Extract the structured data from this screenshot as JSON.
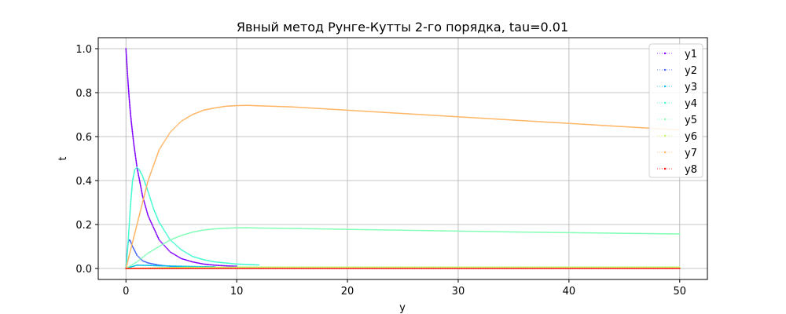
{
  "chart_data": {
    "type": "scatter",
    "title": "Явный метод Рунге-Кутты 2-го порядка, tau=0.01",
    "xlabel": "y",
    "ylabel": "t",
    "xlim": [
      -2.5,
      52.5
    ],
    "ylim": [
      -0.05,
      1.05
    ],
    "xticks": [
      0,
      10,
      20,
      30,
      40,
      50
    ],
    "yticks": [
      0.0,
      0.2,
      0.4,
      0.6,
      0.8,
      1.0
    ],
    "xtick_labels": [
      "0",
      "10",
      "20",
      "30",
      "40",
      "50"
    ],
    "ytick_labels": [
      "0.0",
      "0.2",
      "0.4",
      "0.6",
      "0.8",
      "1.0"
    ],
    "grid": true,
    "legend_position": "top-right",
    "series": [
      {
        "name": "y1",
        "color": "#8000ff",
        "x": [
          0,
          0.1,
          0.2,
          0.3,
          0.4,
          0.5,
          0.7,
          1.0,
          1.5,
          2,
          3,
          4,
          5,
          6,
          7,
          8,
          9,
          10
        ],
        "y": [
          1.0,
          0.92,
          0.84,
          0.77,
          0.71,
          0.66,
          0.57,
          0.46,
          0.33,
          0.24,
          0.13,
          0.075,
          0.045,
          0.03,
          0.02,
          0.015,
          0.012,
          0.01
        ]
      },
      {
        "name": "y2",
        "color": "#4062fa",
        "x": [
          0,
          0.1,
          0.2,
          0.3,
          0.4,
          0.6,
          0.8,
          1.0,
          1.5,
          2,
          3,
          4,
          5
        ],
        "y": [
          0.0,
          0.07,
          0.12,
          0.13,
          0.125,
          0.1,
          0.08,
          0.06,
          0.035,
          0.025,
          0.015,
          0.01,
          0.008
        ]
      },
      {
        "name": "y3",
        "color": "#00c0e6",
        "x": [
          0,
          1,
          2,
          3,
          4,
          5,
          6,
          7,
          8
        ],
        "y": [
          0.0,
          0.015,
          0.014,
          0.012,
          0.011,
          0.01,
          0.009,
          0.008,
          0.008
        ]
      },
      {
        "name": "y4",
        "color": "#40fad0",
        "x": [
          0,
          0.2,
          0.4,
          0.6,
          0.8,
          1.0,
          1.2,
          1.5,
          2,
          2.5,
          3,
          4,
          5,
          6,
          7,
          8,
          9,
          10,
          11,
          12
        ],
        "y": [
          0.0,
          0.12,
          0.28,
          0.4,
          0.45,
          0.46,
          0.45,
          0.42,
          0.35,
          0.27,
          0.21,
          0.13,
          0.085,
          0.055,
          0.04,
          0.03,
          0.025,
          0.02,
          0.018,
          0.016
        ]
      },
      {
        "name": "y5",
        "color": "#80ffb4",
        "x": [
          0,
          1,
          2,
          3,
          4,
          5,
          6,
          7,
          8,
          9,
          10,
          11,
          12,
          15,
          20,
          25,
          30,
          35,
          40,
          45,
          50
        ],
        "y": [
          0.0,
          0.03,
          0.07,
          0.1,
          0.13,
          0.15,
          0.165,
          0.175,
          0.18,
          0.183,
          0.185,
          0.185,
          0.184,
          0.182,
          0.178,
          0.174,
          0.17,
          0.166,
          0.163,
          0.16,
          0.157
        ]
      },
      {
        "name": "y6",
        "color": "#c0fa62",
        "x": [
          0,
          5,
          10,
          15,
          20,
          25,
          30,
          35,
          40,
          45,
          50
        ],
        "y": [
          0.0,
          0.005,
          0.006,
          0.006,
          0.006,
          0.006,
          0.006,
          0.006,
          0.006,
          0.006,
          0.006
        ]
      },
      {
        "name": "y7",
        "color": "#ffb360",
        "x": [
          0,
          1,
          2,
          3,
          4,
          5,
          6,
          7,
          8,
          9,
          10,
          11,
          12,
          15,
          20,
          25,
          30,
          35,
          40,
          45,
          50
        ],
        "y": [
          0.0,
          0.2,
          0.4,
          0.54,
          0.62,
          0.67,
          0.7,
          0.72,
          0.73,
          0.738,
          0.741,
          0.742,
          0.74,
          0.735,
          0.72,
          0.705,
          0.69,
          0.675,
          0.66,
          0.645,
          0.63
        ]
      },
      {
        "name": "y8",
        "color": "#ff0000",
        "x": [
          0,
          5,
          10,
          15,
          20,
          25,
          30,
          35,
          40,
          45,
          50
        ],
        "y": [
          0.0,
          0.0,
          0.0,
          0.0,
          0.0,
          0.0,
          0.0,
          0.0,
          0.0,
          0.0,
          0.0
        ]
      }
    ]
  }
}
